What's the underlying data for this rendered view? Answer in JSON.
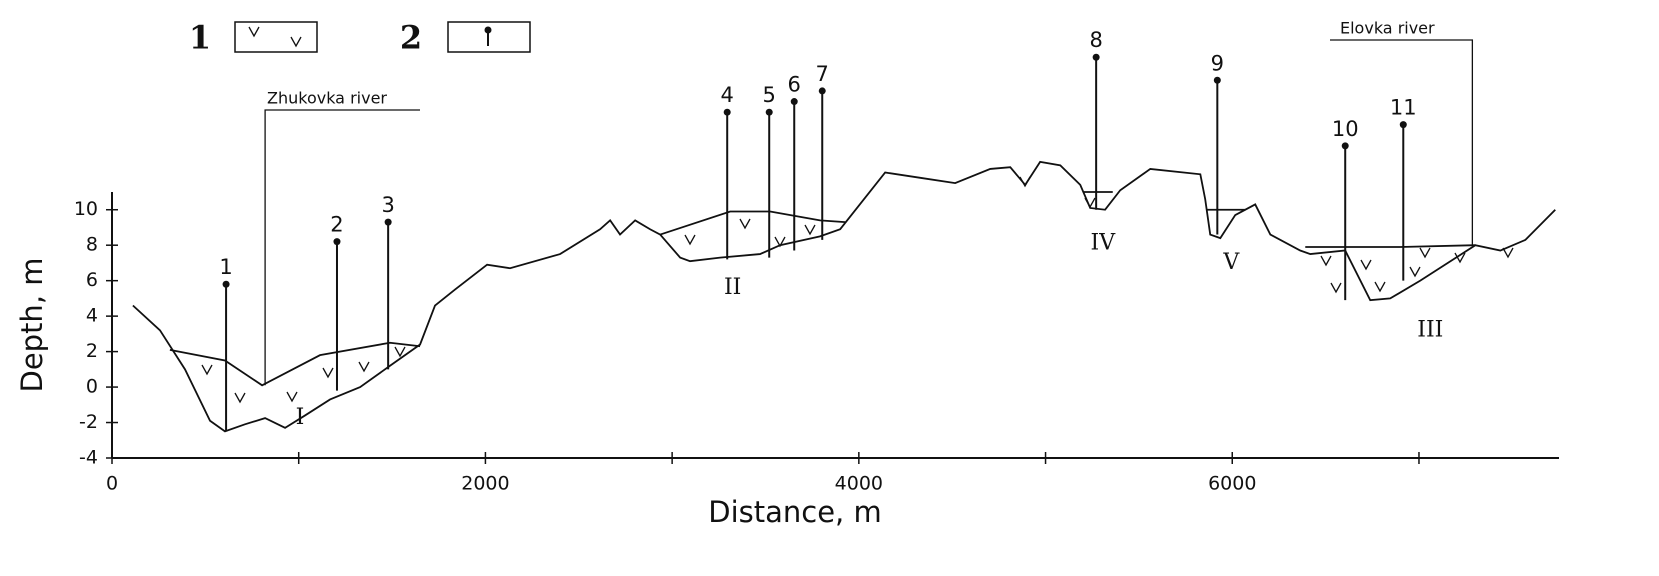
{
  "chart_data": {
    "type": "line",
    "xlabel": "Distance, m",
    "ylabel": "Depth, m",
    "xlim": [
      0,
      7750
    ],
    "ylim": [
      -4,
      11
    ],
    "xticks": [
      0,
      2000,
      4000,
      6000
    ],
    "xminorticks": [
      1000,
      3000,
      5000,
      7000
    ],
    "yticks": [
      -4,
      -2,
      0,
      2,
      4,
      6,
      8,
      10
    ],
    "color": "#111111",
    "legend": [
      {
        "label": "1"
      },
      {
        "label": "2"
      }
    ],
    "rivers": [
      {
        "name": "Zhukovka river",
        "x": 820
      },
      {
        "name": "Elovka river",
        "x": 7286
      }
    ],
    "profile": {
      "x": [
        112,
        257,
        391,
        525,
        605,
        712,
        820,
        927,
        1034,
        1168,
        1329,
        1489,
        1650,
        1730,
        1837,
        2009,
        2132,
        2400,
        2614,
        2668,
        2721,
        2802,
        2882,
        2936,
        3043,
        3096,
        3257,
        3471,
        3578,
        3792,
        3900,
        4141,
        4329,
        4516,
        4704,
        4811,
        4891,
        4971,
        5079,
        5186,
        5239,
        5319,
        5400,
        5561,
        5829,
        5855,
        5882,
        5936,
        6016,
        6123,
        6204,
        6364,
        6418,
        6605,
        6739,
        6846,
        7007,
        7302,
        7436,
        7570,
        7730
      ],
      "values": [
        4.6,
        3.2,
        1.0,
        -1.9,
        -2.5,
        -2.1,
        -1.75,
        -2.3,
        -1.6,
        -0.7,
        0,
        1.2,
        2.4,
        4.6,
        5.5,
        6.9,
        6.7,
        7.5,
        8.9,
        9.4,
        8.6,
        9.4,
        8.9,
        8.6,
        7.3,
        7.1,
        7.3,
        7.5,
        8.0,
        8.5,
        8.9,
        12.1,
        11.8,
        11.5,
        12.3,
        12.4,
        11.4,
        12.7,
        12.5,
        11.4,
        10.1,
        10.0,
        11.1,
        12.3,
        12.0,
        10.6,
        8.6,
        8.4,
        9.7,
        10.3,
        8.6,
        7.7,
        7.5,
        7.7,
        4.9,
        5.0,
        6.0,
        8.0,
        7.7,
        8.3,
        10.0
      ]
    },
    "lenses": [
      {
        "label": "I",
        "x": [
          310,
          605,
          804,
          1114,
          1489,
          1650
        ],
        "values": [
          2.1,
          1.5,
          0.1,
          1.8,
          2.5,
          2.3
        ]
      },
      {
        "label": "II",
        "x": [
          2936,
          3311,
          3525,
          3792,
          3927
        ],
        "values": [
          8.6,
          9.9,
          9.9,
          9.4,
          9.3
        ]
      },
      {
        "label": "III",
        "x": [
          6391,
          6900,
          7302
        ],
        "values": [
          7.9,
          7.9,
          8.0
        ]
      },
      {
        "label": "IV",
        "x": [
          5200,
          5360
        ],
        "values": [
          11.0,
          11.0
        ]
      },
      {
        "label": "V",
        "x": [
          5866,
          6070
        ],
        "values": [
          10.0,
          10.0
        ]
      }
    ],
    "boreholes": [
      {
        "label": "1",
        "x": 611,
        "top": 5.8,
        "bottom": -2.5
      },
      {
        "label": "2",
        "x": 1205,
        "top": 8.2,
        "bottom": -0.2
      },
      {
        "label": "3",
        "x": 1479,
        "top": 9.3,
        "bottom": 1.0
      },
      {
        "label": "4",
        "x": 3295,
        "top": 15.5,
        "bottom": 7.2
      },
      {
        "label": "5",
        "x": 3520,
        "top": 15.5,
        "bottom": 7.3
      },
      {
        "label": "6",
        "x": 3654,
        "top": 16.1,
        "bottom": 7.7
      },
      {
        "label": "7",
        "x": 3804,
        "top": 16.7,
        "bottom": 8.3
      },
      {
        "label": "8",
        "x": 5271,
        "top": 18.6,
        "bottom": 10.0
      },
      {
        "label": "9",
        "x": 5920,
        "top": 17.3,
        "bottom": 8.6
      },
      {
        "label": "10",
        "x": 6605,
        "top": 13.6,
        "bottom": 4.9
      },
      {
        "label": "11",
        "x": 6916,
        "top": 14.8,
        "bottom": 6.0
      }
    ]
  }
}
